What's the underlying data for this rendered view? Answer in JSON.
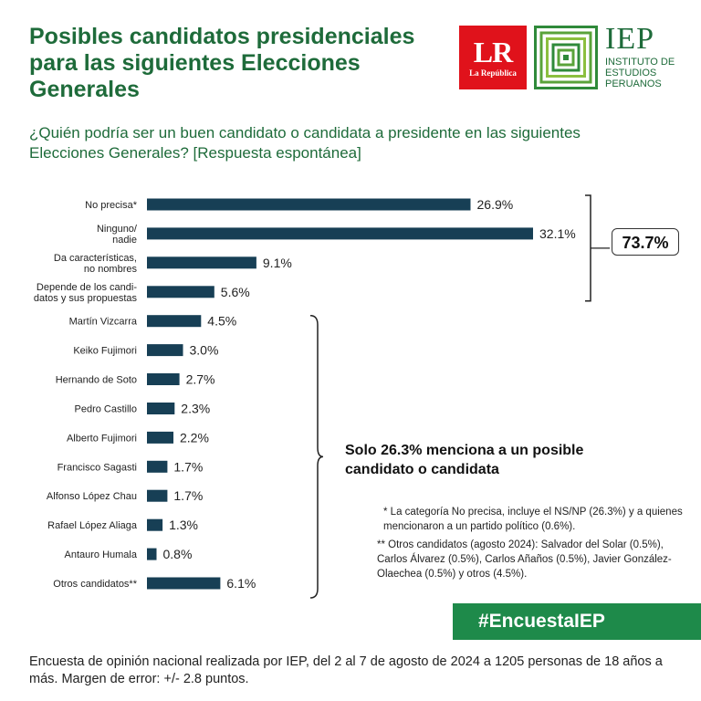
{
  "header": {
    "title": "Posibles candidatos presidenciales para las siguientes Elecciones Generales",
    "lr_logo": "LR",
    "lr_logo_sub": "La República",
    "iep_logo": "IEP",
    "iep_full": "INSTITUTO DE ESTUDIOS PERUANOS"
  },
  "question": "¿Quién podría ser un buen candidato o candidata a presidente en las siguientes Elecciones Generales? [Respuesta espontánea]",
  "chart_data": {
    "type": "bar",
    "orientation": "horizontal",
    "categories": [
      "No precisa*",
      "Ninguno/ nadie",
      "Da características, no nombres",
      "Depende de los candidatos y sus propuestas",
      "Martín Vizcarra",
      "Keiko Fujimori",
      "Hernando de Soto",
      "Pedro Castillo",
      "Alberto Fujimori",
      "Francisco Sagasti",
      "Alfonso López Chau",
      "Rafael López Aliaga",
      "Antauro Humala",
      "Otros candidatos**"
    ],
    "category_lines": [
      [
        "No precisa*"
      ],
      [
        "Ninguno/",
        "nadie"
      ],
      [
        "Da características,",
        "no nombres"
      ],
      [
        "Depende de los candi-",
        "datos y sus propuestas"
      ],
      [
        "Martín Vizcarra"
      ],
      [
        "Keiko Fujimori"
      ],
      [
        "Hernando de Soto"
      ],
      [
        "Pedro Castillo"
      ],
      [
        "Alberto Fujimori"
      ],
      [
        "Francisco Sagasti"
      ],
      [
        "Alfonso López Chau"
      ],
      [
        "Rafael López Aliaga"
      ],
      [
        "Antauro Humala"
      ],
      [
        "Otros candidatos**"
      ]
    ],
    "values": [
      26.9,
      32.1,
      9.1,
      5.6,
      4.5,
      3.0,
      2.7,
      2.3,
      2.2,
      1.7,
      1.7,
      1.3,
      0.8,
      6.1
    ],
    "value_labels": [
      "26.9%",
      "32.1%",
      "9.1%",
      "5.6%",
      "4.5%",
      "3.0%",
      "2.7%",
      "2.3%",
      "2.2%",
      "1.7%",
      "1.7%",
      "1.3%",
      "0.8%",
      "6.1%"
    ],
    "xlim": [
      0,
      32.1
    ],
    "bar_color": "#173f55",
    "grid": false,
    "groups": [
      {
        "from": 0,
        "to": 3,
        "label": "73.7%"
      },
      {
        "from": 4,
        "to": 13,
        "label": "Solo 26.3% menciona a un posible candidato o candidata"
      }
    ]
  },
  "notes": {
    "footnote1": "* La categoría No precisa, incluye el NS/NP (26.3%) y a quienes mencionaron a un partido político (0.6%).",
    "footnote2": "** Otros candidatos (agosto 2024): Salvador del Solar (0.5%), Carlos Álvarez (0.5%), Carlos Añaños (0.5%), Javier González-Olaechea (0.5%) y otros (4.5%)."
  },
  "hashtag": "#EncuestaIEP",
  "source": "Encuesta de opinión nacional realizada por IEP, del 2 al 7 de agosto de 2024 a 1205 personas de 18 años a más. Margen de error: +/- 2.8 puntos.",
  "colors": {
    "brand_green": "#1e6b3a",
    "hashtag_green": "#1e8a4a",
    "lr_red": "#e0121b",
    "bar": "#173f55"
  }
}
